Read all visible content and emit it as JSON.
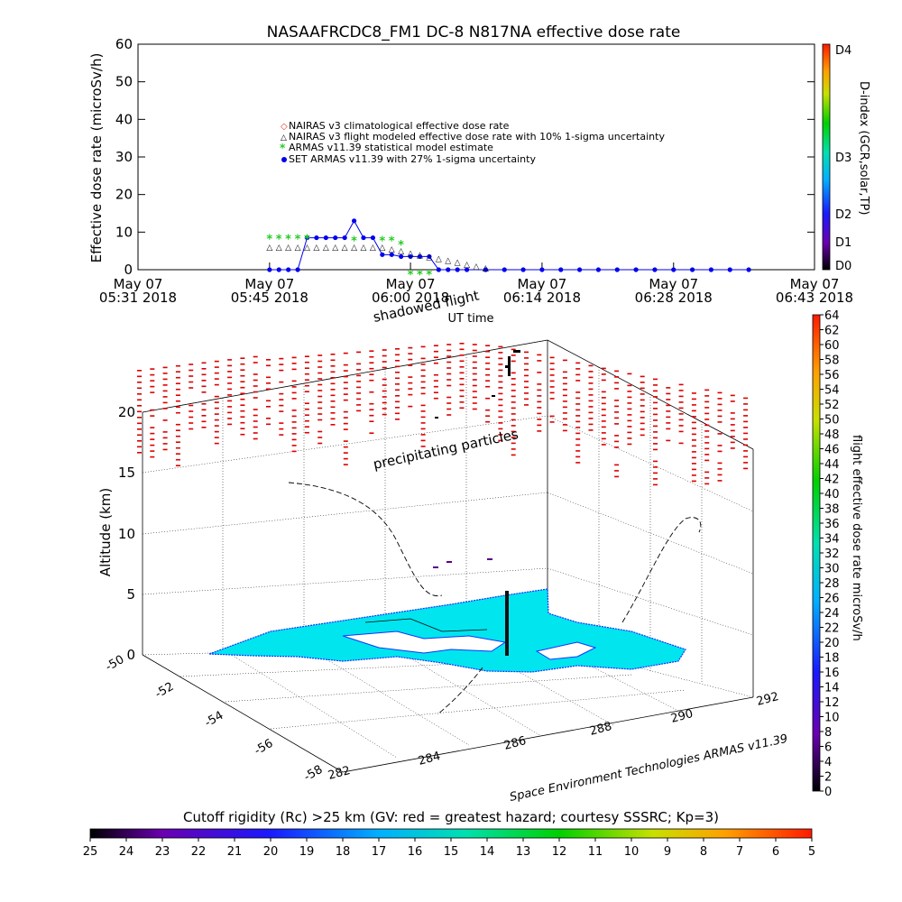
{
  "title": "NASAAFRCDC8_FM1 DC-8    N817NA effective dose rate",
  "top_chart": {
    "ylabel": "Effective dose rate (microSv/h)",
    "y_ticks": [
      "0",
      "10",
      "20",
      "30",
      "40",
      "50",
      "60"
    ],
    "x_tick_labels": [
      {
        "date": "May 07",
        "time": "05:31 2018"
      },
      {
        "date": "May 07",
        "time": "05:45 2018"
      },
      {
        "date": "May 07",
        "time": "06:00 2018"
      },
      {
        "date": "May 07",
        "time": "06:14 2018"
      },
      {
        "date": "May 07",
        "time": "06:28 2018"
      },
      {
        "date": "May 07",
        "time": "06:43 2018"
      }
    ],
    "xlabel": "UT time",
    "legend": [
      "NAIRAS v3 climatological effective dose rate",
      "NAIRAS v3 flight modeled effective dose rate with 10% 1-sigma uncertainty",
      "ARMAS v11.39 statistical model estimate",
      "SET ARMAS v11.39 with 27% 1-sigma uncertainty"
    ],
    "d_index_label": "D-index (GCR,solar,TP)",
    "d_index_ticks": [
      "D0",
      "D1",
      "D2",
      "D3",
      "D4"
    ]
  },
  "chart_data": [
    {
      "type": "line",
      "title": "NASAAFRCDC8_FM1 DC-8    N817NA effective dose rate",
      "xlabel": "UT time",
      "ylabel": "Effective dose rate (microSv/h)",
      "ylim": [
        0,
        60
      ],
      "x_time_range": [
        "05:31",
        "06:43"
      ],
      "series": [
        {
          "name": "SET ARMAS v11.39 with 27% 1-sigma uncertainty",
          "x": [
            "05:45",
            "05:46",
            "05:47",
            "05:48",
            "05:49",
            "05:50",
            "05:51",
            "05:52",
            "05:53",
            "05:54",
            "05:55",
            "05:56",
            "05:57",
            "05:58",
            "05:59",
            "06:00",
            "06:01",
            "06:02",
            "06:03",
            "06:04",
            "06:05",
            "06:06",
            "06:08",
            "06:10",
            "06:12",
            "06:14",
            "06:16",
            "06:18",
            "06:20",
            "06:22",
            "06:24",
            "06:26",
            "06:28",
            "06:30",
            "06:32",
            "06:34",
            "06:36"
          ],
          "values": [
            0,
            0,
            0,
            0,
            8.5,
            8.5,
            8.5,
            8.5,
            8.5,
            13,
            8.5,
            8.5,
            4,
            4,
            3.5,
            3.5,
            3.5,
            3.5,
            0,
            0,
            0,
            0,
            0,
            0,
            0,
            0,
            0,
            0,
            0,
            0,
            0,
            0,
            0,
            0,
            0,
            0,
            0
          ]
        },
        {
          "name": "NAIRAS v3 flight modeled effective dose rate with 10% 1-sigma uncertainty",
          "x": [
            "05:45",
            "05:46",
            "05:47",
            "05:48",
            "05:49",
            "05:50",
            "05:51",
            "05:52",
            "05:53",
            "05:54",
            "05:55",
            "05:56",
            "05:57",
            "05:58",
            "05:59",
            "06:00",
            "06:01",
            "06:02",
            "06:03",
            "06:04",
            "06:05",
            "06:06",
            "06:07",
            "06:08"
          ],
          "values": [
            6,
            6,
            6,
            6,
            6,
            6,
            6,
            6,
            6,
            6,
            6,
            6,
            6,
            5.5,
            5,
            4.5,
            4,
            3.5,
            3,
            2.5,
            2,
            1.5,
            1,
            0.5
          ]
        },
        {
          "name": "ARMAS v11.39 statistical model estimate",
          "x": [
            "05:45",
            "05:46",
            "05:47",
            "05:48",
            "05:49",
            "05:54",
            "05:57",
            "05:58",
            "05:59",
            "06:00",
            "06:01",
            "06:02"
          ],
          "values": [
            8.5,
            8.5,
            8.5,
            8.5,
            8.5,
            8,
            8,
            8,
            7,
            -1,
            -1,
            -1
          ]
        }
      ]
    },
    {
      "type": "scatter",
      "title": "shadowed flight",
      "ylabel": "Altitude (km)",
      "ylim": [
        0,
        20
      ],
      "z_ticks": [
        "0",
        "5",
        "10",
        "15",
        "20"
      ],
      "lat_ticks": [
        "-50",
        "-52",
        "-54",
        "-56",
        "-58"
      ],
      "lon_ticks": [
        "282",
        "284",
        "286",
        "288",
        "290",
        "292"
      ],
      "annotation": "precipitating particles",
      "colorbar_label": "flight effective dose rate microSv/h",
      "colorbar_ticks": [
        "0",
        "2",
        "4",
        "6",
        "8",
        "10",
        "12",
        "14",
        "16",
        "18",
        "20",
        "22",
        "24",
        "26",
        "28",
        "30",
        "32",
        "34",
        "36",
        "38",
        "40",
        "42",
        "44",
        "46",
        "48",
        "50",
        "52",
        "54",
        "56",
        "58",
        "60",
        "62",
        "64"
      ]
    }
  ],
  "credit": "Space Environment Technologies ARMAS v11.39",
  "rigidity": {
    "label": "Cutoff rigidity (Rc) >25 km (GV: red = greatest hazard; courtesy SSSRC; Kp=3)",
    "ticks": [
      "25",
      "24",
      "23",
      "22",
      "21",
      "20",
      "19",
      "18",
      "17",
      "16",
      "15",
      "14",
      "13",
      "12",
      "11",
      "10",
      "9",
      "8",
      "7",
      "6",
      "5"
    ]
  },
  "colors": {
    "armas": "#0000ee",
    "nairas_flight": "#000000",
    "armas_stat": "#22cc22",
    "nairas_clim": "#ee3322",
    "precip": "#dd0000",
    "land": "#00e5ee",
    "coast": "#1133ff"
  }
}
